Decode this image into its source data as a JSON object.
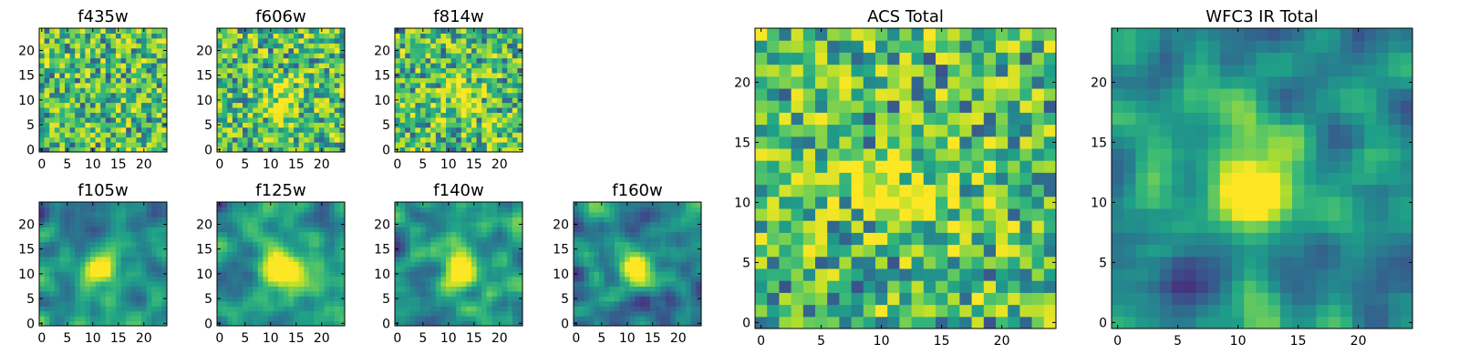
{
  "chart_data": {
    "type": "heatmap",
    "colormap": "viridis",
    "grid": false,
    "panels": [
      {
        "title": "f435w",
        "pattern": "noise",
        "peak": 0.0,
        "xticks": [
          "0",
          "5",
          "10",
          "15",
          "20"
        ],
        "yticks": [
          "0",
          "5",
          "10",
          "15",
          "20"
        ],
        "xlim": [
          0,
          24
        ],
        "ylim": [
          0,
          24
        ]
      },
      {
        "title": "f606w",
        "pattern": "noise",
        "peak": 0.35,
        "xticks": [
          "0",
          "5",
          "10",
          "15",
          "20"
        ],
        "yticks": [
          "0",
          "5",
          "10",
          "15",
          "20"
        ],
        "xlim": [
          0,
          24
        ],
        "ylim": [
          0,
          24
        ]
      },
      {
        "title": "f814w",
        "pattern": "noise",
        "peak": 0.3,
        "xticks": [
          "0",
          "5",
          "10",
          "15",
          "20"
        ],
        "yticks": [
          "0",
          "5",
          "10",
          "15",
          "20"
        ],
        "xlim": [
          0,
          24
        ],
        "ylim": [
          0,
          24
        ]
      },
      {
        "title": "f105w",
        "pattern": "smooth",
        "peak": 0.8,
        "xticks": [
          "0",
          "5",
          "10",
          "15",
          "20"
        ],
        "yticks": [
          "0",
          "5",
          "10",
          "15",
          "20"
        ],
        "xlim": [
          0,
          24
        ],
        "ylim": [
          0,
          24
        ]
      },
      {
        "title": "f125w",
        "pattern": "smooth",
        "peak": 0.75,
        "xticks": [
          "0",
          "5",
          "10",
          "15",
          "20"
        ],
        "yticks": [
          "0",
          "5",
          "10",
          "15",
          "20"
        ],
        "xlim": [
          0,
          24
        ],
        "ylim": [
          0,
          24
        ]
      },
      {
        "title": "f140w",
        "pattern": "smooth",
        "peak": 0.75,
        "xticks": [
          "0",
          "5",
          "10",
          "15",
          "20"
        ],
        "yticks": [
          "0",
          "5",
          "10",
          "15",
          "20"
        ],
        "xlim": [
          0,
          24
        ],
        "ylim": [
          0,
          24
        ]
      },
      {
        "title": "f160w",
        "pattern": "smooth",
        "peak": 0.8,
        "xticks": [
          "0",
          "5",
          "10",
          "15",
          "20"
        ],
        "yticks": [
          "0",
          "5",
          "10",
          "15",
          "20"
        ],
        "xlim": [
          0,
          24
        ],
        "ylim": [
          0,
          24
        ]
      },
      {
        "title": "ACS Total",
        "pattern": "noise",
        "peak": 0.3,
        "xticks": [
          "0",
          "5",
          "10",
          "15",
          "20"
        ],
        "yticks": [
          "0",
          "5",
          "10",
          "15",
          "20"
        ],
        "xlim": [
          0,
          24
        ],
        "ylim": [
          0,
          24
        ]
      },
      {
        "title": "WFC3 IR Total",
        "pattern": "smooth",
        "peak": 0.85,
        "xticks": [
          "0",
          "5",
          "10",
          "15",
          "20"
        ],
        "yticks": [
          "0",
          "5",
          "10",
          "15",
          "20"
        ],
        "xlim": [
          0,
          24
        ],
        "ylim": [
          0,
          24
        ]
      }
    ]
  }
}
